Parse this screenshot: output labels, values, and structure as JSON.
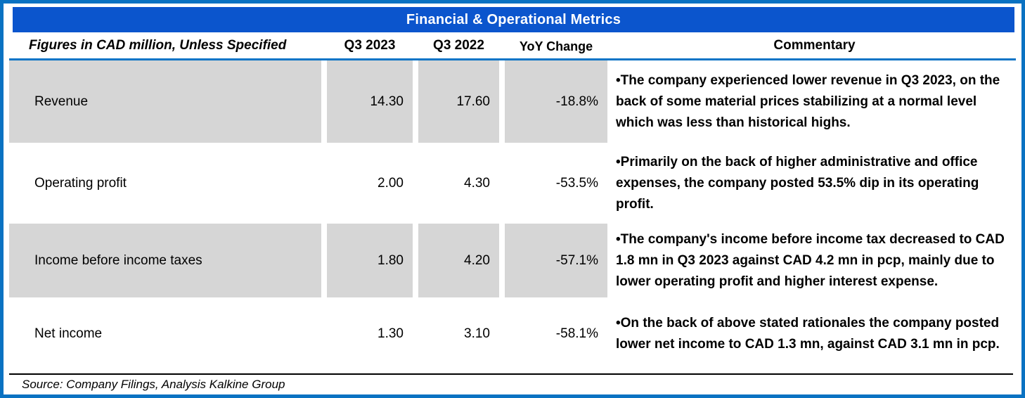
{
  "title": "Financial & Operational Metrics",
  "colors": {
    "frame_border": "#0a72c2",
    "title_background": "#0b55cd",
    "title_text": "#ffffff",
    "header_rule": "#0b74c6",
    "row_stripe": "#d6d6d6",
    "footer_rule": "#000000",
    "body_text": "#000000"
  },
  "table": {
    "header": {
      "metric": "Figures in CAD million, Unless Specified",
      "q3_2023": "Q3 2023",
      "q3_2022": "Q3 2022",
      "yoy_change": "YoY Change",
      "commentary": "Commentary"
    },
    "rows": [
      {
        "metric": "Revenue",
        "q3_2023": "14.30",
        "q3_2022": "17.60",
        "yoy_change": "-18.8%",
        "commentary": "•The company experienced lower revenue in Q3 2023, on the back of some material prices stabilizing at a normal level which was less than historical highs."
      },
      {
        "metric": "Operating profit",
        "q3_2023": "2.00",
        "q3_2022": "4.30",
        "yoy_change": "-53.5%",
        "commentary": "•Primarily on the back of higher administrative and office expenses, the company posted 53.5% dip in its operating profit."
      },
      {
        "metric": "Income before income taxes",
        "q3_2023": "1.80",
        "q3_2022": "4.20",
        "yoy_change": "-57.1%",
        "commentary": "•The company's income before income tax decreased to CAD 1.8 mn in Q3 2023 against CAD 4.2 mn in pcp, mainly due to lower operating profit and higher interest expense."
      },
      {
        "metric": "Net income",
        "q3_2023": "1.30",
        "q3_2022": "3.10",
        "yoy_change": "-58.1%",
        "commentary": "•On the back of above stated rationales the company posted lower net income to CAD 1.3 mn, against CAD 3.1 mn in pcp."
      }
    ]
  },
  "footer": {
    "source": "Source: Company Filings, Analysis Kalkine Group"
  },
  "chart_data": {
    "type": "table",
    "title": "Financial & Operational Metrics",
    "units": "CAD million, Unless Specified",
    "columns": [
      "Metric",
      "Q3 2023",
      "Q3 2022",
      "YoY Change"
    ],
    "rows": [
      [
        "Revenue",
        14.3,
        17.6,
        "-18.8%"
      ],
      [
        "Operating profit",
        2.0,
        4.3,
        "-53.5%"
      ],
      [
        "Income before income taxes",
        1.8,
        4.2,
        "-57.1%"
      ],
      [
        "Net income",
        1.3,
        3.1,
        "-58.1%"
      ]
    ],
    "source_note": "Source: Company Filings, Analysis Kalkine Group"
  }
}
